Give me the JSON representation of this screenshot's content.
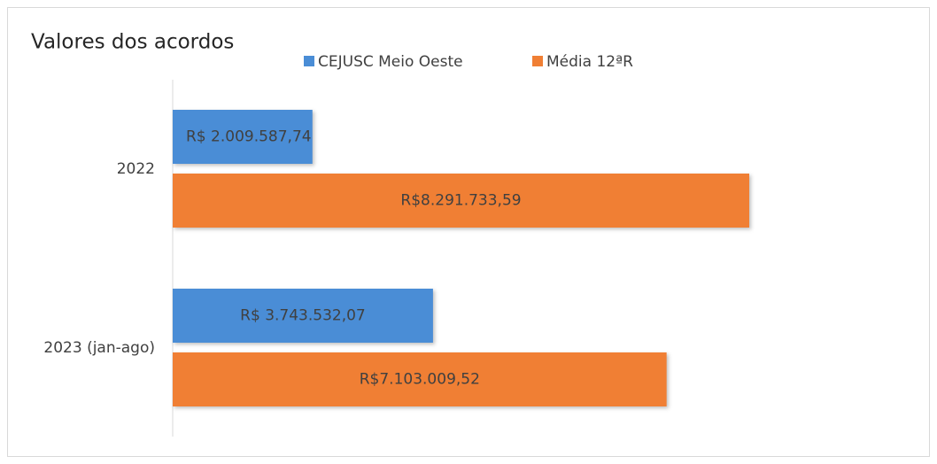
{
  "chart_data": {
    "type": "hbar",
    "title": "Valores dos acordos",
    "categories": [
      "2022",
      "2023 (jan-ago)"
    ],
    "series": [
      {
        "name": "CEJUSC Meio Oeste",
        "color": "#4a8dd6",
        "values": [
          2009587.74,
          3743532.07
        ],
        "value_labels": [
          "R$ 2.009.587,74",
          "R$ 3.743.532,07"
        ]
      },
      {
        "name": "Média 12ªR",
        "color": "#f07f34",
        "values": [
          8291733.59,
          7103009.52
        ],
        "value_labels": [
          "R$8.291.733,59",
          "R$7.103.009,52"
        ]
      }
    ],
    "legend": "top"
  }
}
